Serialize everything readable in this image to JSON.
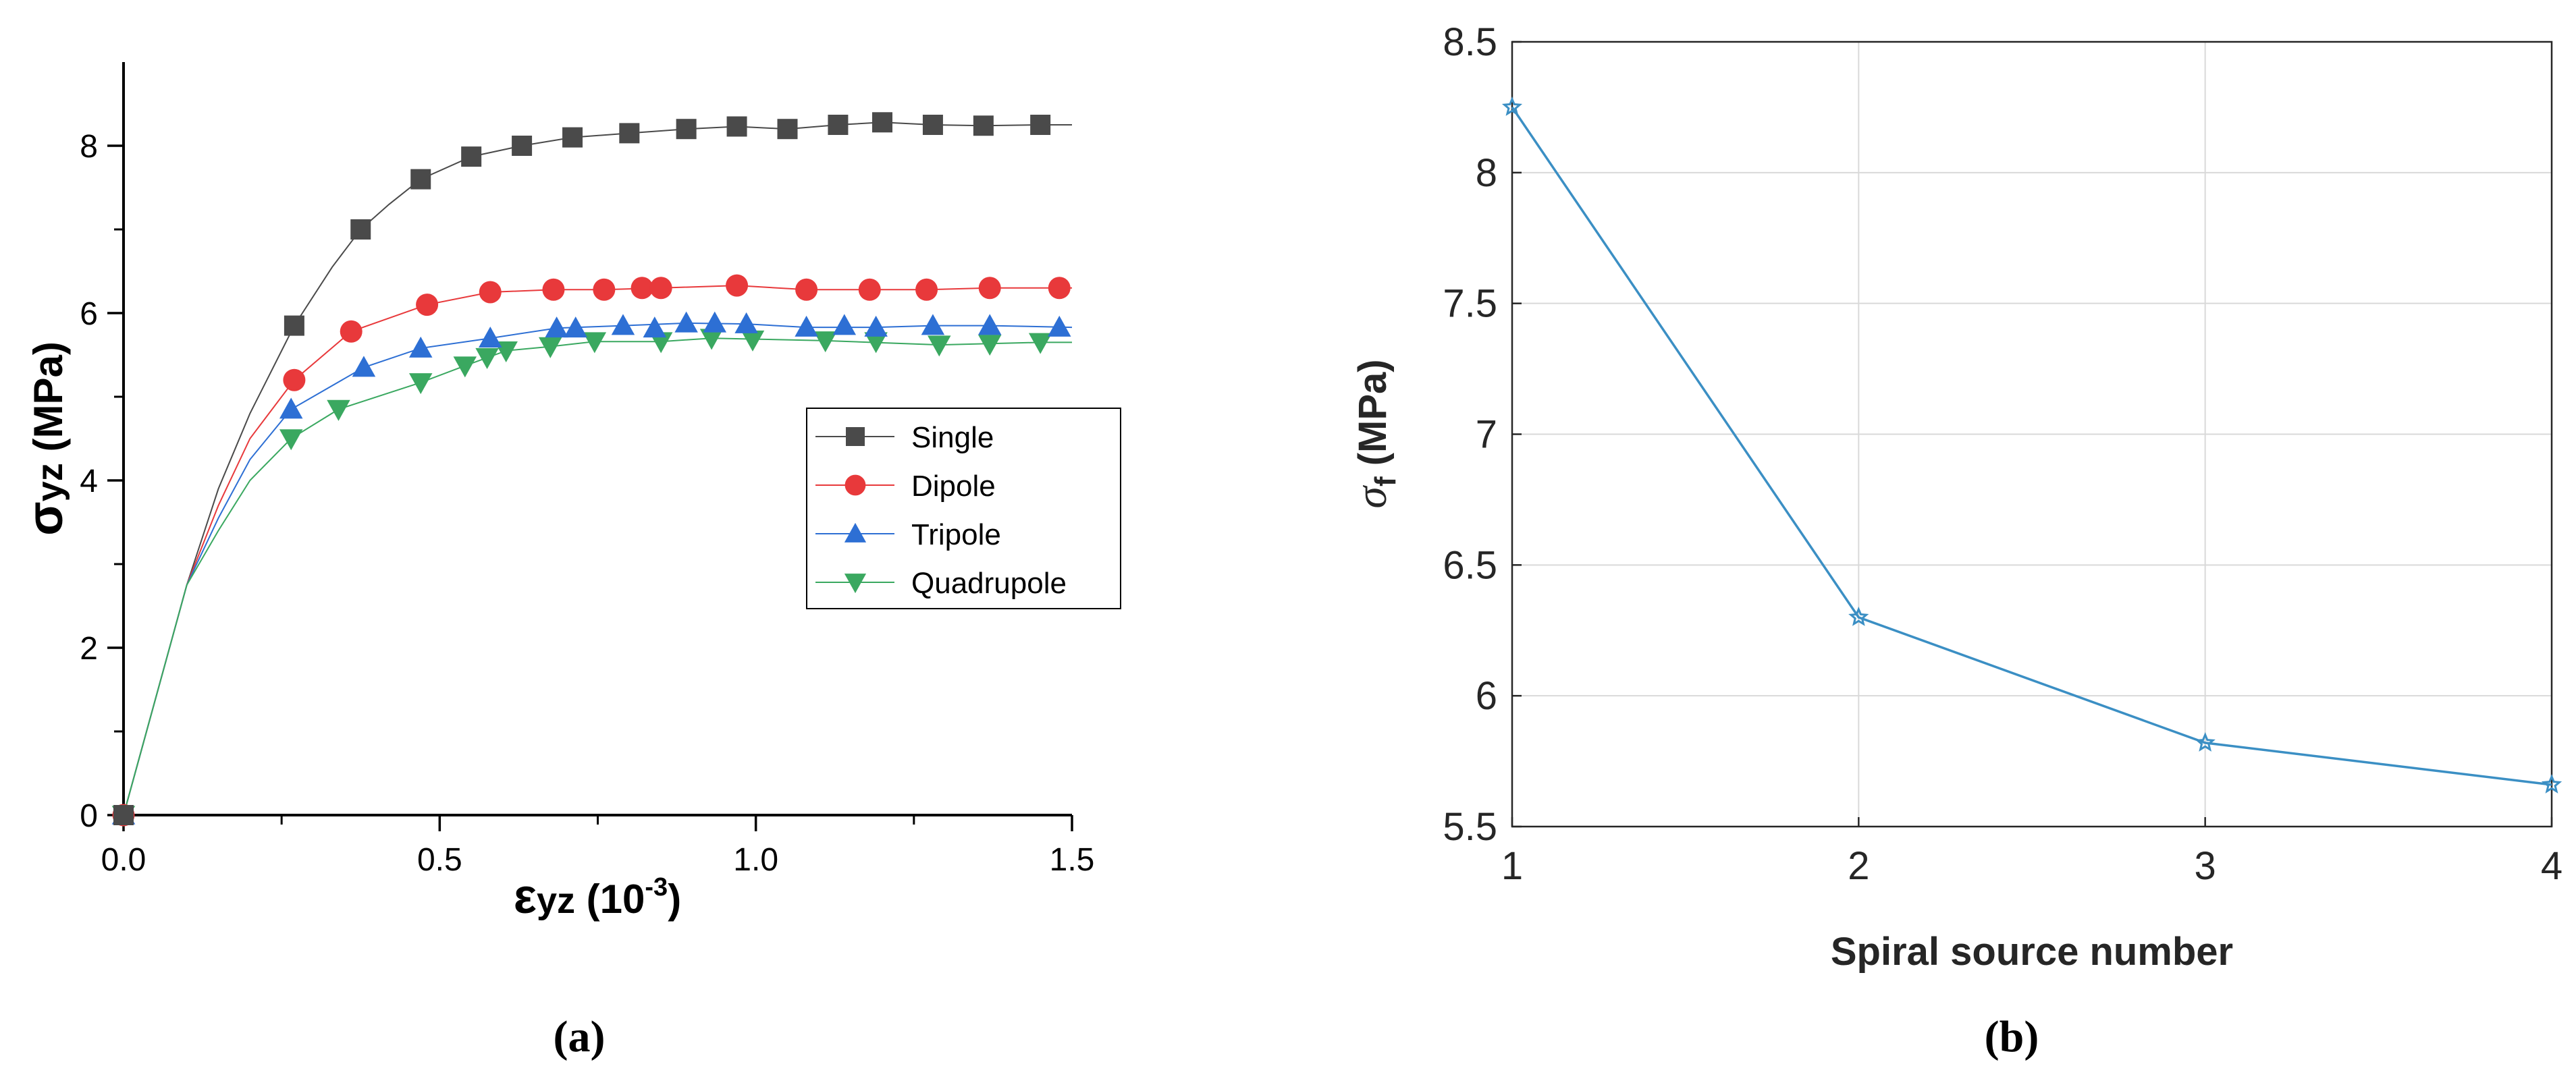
{
  "chart_data": [
    {
      "type": "line",
      "panel_label": "(a)",
      "xlabel_sym": "ε",
      "xlabel_sub": "yz",
      "xlabel_text": " (10",
      "xlabel_sup": "-3",
      "xlabel_close": ")",
      "ylabel_sym": "σ",
      "ylabel_sub": "yz",
      "ylabel_text": " (MPa)",
      "xlim": [
        0,
        1.5
      ],
      "ylim": [
        0,
        9
      ],
      "xticks": [
        0.0,
        0.5,
        1.0,
        1.5
      ],
      "xtick_labels": [
        "0.0",
        "0.5",
        "1.0",
        "1.5"
      ],
      "yticks": [
        0,
        2,
        4,
        6,
        8
      ],
      "ytick_labels": [
        "0",
        "2",
        "4",
        "6",
        "8"
      ],
      "legend_position": "center-right",
      "series": [
        {
          "name": "Single",
          "color": "#4a4a4a",
          "marker": "square",
          "x": [
            0.0,
            0.27,
            0.375,
            0.47,
            0.55,
            0.63,
            0.71,
            0.8,
            0.89,
            0.97,
            1.05,
            1.13,
            1.2,
            1.28,
            1.36,
            1.45
          ],
          "y": [
            0,
            5.85,
            7.0,
            7.6,
            7.87,
            8.0,
            8.1,
            8.15,
            8.2,
            8.23,
            8.2,
            8.25,
            8.28,
            8.25,
            8.24,
            8.25
          ],
          "curve_x": [
            0.0,
            0.1,
            0.15,
            0.2,
            0.27,
            0.33,
            0.375,
            0.42,
            0.47,
            0.55,
            0.63,
            0.71,
            0.8,
            0.89,
            0.97,
            1.05,
            1.13,
            1.2,
            1.28,
            1.36,
            1.45,
            1.5
          ],
          "curve_y": [
            0,
            2.75,
            3.9,
            4.8,
            5.85,
            6.55,
            7.0,
            7.3,
            7.6,
            7.87,
            8.0,
            8.1,
            8.15,
            8.2,
            8.23,
            8.2,
            8.25,
            8.28,
            8.25,
            8.24,
            8.25,
            8.25
          ]
        },
        {
          "name": "Dipole",
          "color": "#e8393b",
          "marker": "circle",
          "x": [
            0.0,
            0.27,
            0.36,
            0.48,
            0.58,
            0.68,
            0.76,
            0.82,
            0.85,
            0.97,
            1.08,
            1.18,
            1.27,
            1.37,
            1.48
          ],
          "y": [
            0,
            5.2,
            5.78,
            6.1,
            6.25,
            6.28,
            6.28,
            6.3,
            6.3,
            6.33,
            6.28,
            6.28,
            6.28,
            6.3,
            6.3
          ],
          "curve_x": [
            0.0,
            0.1,
            0.15,
            0.2,
            0.27,
            0.36,
            0.48,
            0.58,
            0.68,
            0.76,
            0.85,
            0.97,
            1.08,
            1.18,
            1.27,
            1.37,
            1.5
          ],
          "curve_y": [
            0,
            2.75,
            3.7,
            4.5,
            5.2,
            5.78,
            6.1,
            6.25,
            6.28,
            6.28,
            6.3,
            6.33,
            6.28,
            6.28,
            6.28,
            6.3,
            6.3
          ]
        },
        {
          "name": "Tripole",
          "color": "#2d6fd4",
          "marker": "triangle-up",
          "x": [
            0.0,
            0.265,
            0.38,
            0.47,
            0.58,
            0.685,
            0.715,
            0.79,
            0.84,
            0.89,
            0.935,
            0.985,
            1.08,
            1.14,
            1.19,
            1.28,
            1.37,
            1.48
          ],
          "y": [
            0,
            4.85,
            5.35,
            5.58,
            5.7,
            5.82,
            5.82,
            5.85,
            5.82,
            5.88,
            5.88,
            5.87,
            5.83,
            5.85,
            5.83,
            5.85,
            5.85,
            5.83
          ],
          "curve_x": [
            0.0,
            0.1,
            0.15,
            0.2,
            0.265,
            0.38,
            0.47,
            0.58,
            0.685,
            0.79,
            0.89,
            0.985,
            1.08,
            1.19,
            1.28,
            1.37,
            1.5
          ],
          "curve_y": [
            0,
            2.75,
            3.55,
            4.25,
            4.85,
            5.35,
            5.58,
            5.7,
            5.82,
            5.85,
            5.88,
            5.87,
            5.83,
            5.83,
            5.85,
            5.85,
            5.83
          ]
        },
        {
          "name": "Quadrupole",
          "color": "#3aa860",
          "marker": "triangle-down",
          "x": [
            0.0,
            0.265,
            0.34,
            0.47,
            0.54,
            0.575,
            0.605,
            0.675,
            0.745,
            0.85,
            0.93,
            0.995,
            1.11,
            1.19,
            1.29,
            1.37,
            1.45
          ],
          "y": [
            0,
            4.5,
            4.85,
            5.17,
            5.37,
            5.47,
            5.55,
            5.6,
            5.66,
            5.66,
            5.7,
            5.68,
            5.67,
            5.66,
            5.62,
            5.63,
            5.65
          ],
          "curve_x": [
            0.0,
            0.1,
            0.15,
            0.2,
            0.265,
            0.34,
            0.47,
            0.54,
            0.605,
            0.675,
            0.745,
            0.85,
            0.93,
            1.11,
            1.29,
            1.45,
            1.5
          ],
          "curve_y": [
            0,
            2.75,
            3.4,
            4.0,
            4.5,
            4.85,
            5.17,
            5.37,
            5.55,
            5.6,
            5.66,
            5.66,
            5.7,
            5.67,
            5.62,
            5.65,
            5.65
          ]
        }
      ]
    },
    {
      "type": "line",
      "panel_label": "(b)",
      "xlabel": "Spiral source number",
      "ylabel_sym": "σ",
      "ylabel_sub": "f",
      "ylabel_text": " (MPa)",
      "xlim": [
        1,
        4
      ],
      "ylim": [
        5.5,
        8.5
      ],
      "xticks": [
        1,
        2,
        3,
        4
      ],
      "xtick_labels": [
        "1",
        "2",
        "3",
        "4"
      ],
      "yticks": [
        5.5,
        6,
        6.5,
        7,
        7.5,
        8,
        8.5
      ],
      "ytick_labels": [
        "5.5",
        "6",
        "6.5",
        "7",
        "7.5",
        "8",
        "8.5"
      ],
      "grid": true,
      "series": [
        {
          "name": "σf",
          "color": "#3b8fc4",
          "marker": "star",
          "x": [
            1,
            2,
            3,
            4
          ],
          "y": [
            8.25,
            6.3,
            5.82,
            5.66
          ]
        }
      ]
    }
  ]
}
